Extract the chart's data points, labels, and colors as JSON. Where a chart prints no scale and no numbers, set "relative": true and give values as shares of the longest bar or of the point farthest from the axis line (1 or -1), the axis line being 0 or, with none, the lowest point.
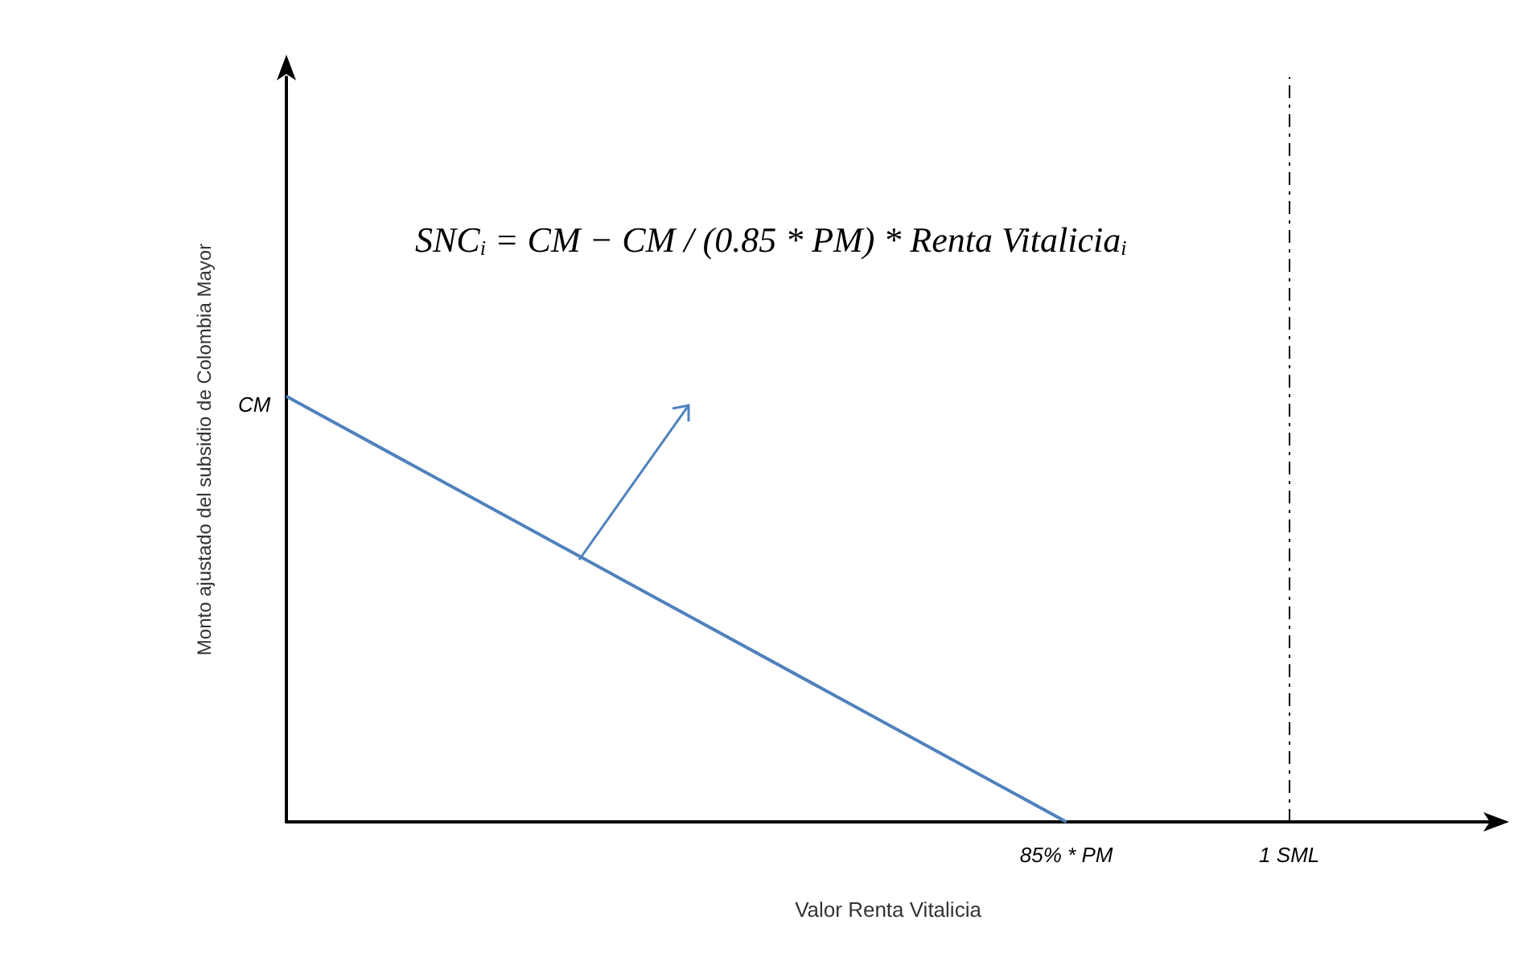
{
  "chart_data": {
    "type": "line",
    "relative": true,
    "xlabel": "Valor Renta Vitalicia",
    "ylabel": "Monto ajustado del subsidio de Colombia Mayor",
    "categories": [
      null,
      null,
      null,
      null,
      null,
      null,
      null,
      "85% * PM",
      null,
      "1 SML",
      null
    ],
    "values": [
      1,
      null,
      null,
      null,
      null,
      null,
      null,
      0,
      null,
      null,
      null
    ],
    "color": "#4f81bd",
    "marker": "none",
    "grid": false,
    "ref_lines": [
      {
        "axis": "x",
        "value": "1 SML",
        "color": "#000000",
        "line_style": "dashed"
      }
    ],
    "annotations": [
      "CM",
      "SNC$_{i}$ = CM − CM / (0.85 * PM) * Renta Vitalicia$_{i}$"
    ]
  }
}
